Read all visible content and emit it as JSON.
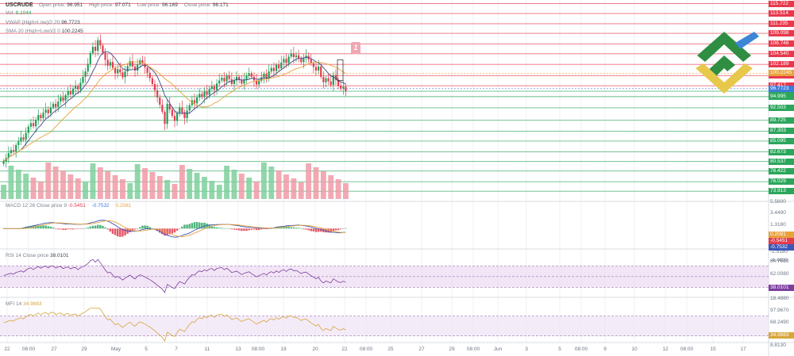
{
  "symbol": "USCRUDE",
  "ohlc": {
    "open_label": "Open price:",
    "open": "96.951",
    "high_label": "High price:",
    "high": "97.071",
    "low_label": "Low price:",
    "low": "96.169",
    "close_label": "Close price:",
    "close": "96.171"
  },
  "volume": {
    "label": "Vol:",
    "value": "9.1044"
  },
  "indicators": {
    "vwap": {
      "label": "VWAP (High+Low)/2 20",
      "value": "96.7723"
    },
    "sma": {
      "label": "SMA 20 (High+Low)/2 0",
      "value": "100.2245"
    },
    "macd": {
      "label": "MACD 12 26 Close price 9",
      "values": [
        "-0.5451",
        "-0.7532",
        "0.2081"
      ]
    },
    "rsi": {
      "label": "RSI 14 Close price",
      "value": "38.0101"
    },
    "mfi": {
      "label": "MFI 14",
      "value": "34.9883"
    }
  },
  "marker": {
    "label": "1"
  },
  "colors": {
    "red_level": "#e8394c",
    "green_level": "#2ba65c",
    "blue_level": "#3d7bdc",
    "price_candle_up": "#1f9e57",
    "price_candle_down": "#e23c4d",
    "vwap_line": "#3a4b8a",
    "sma_line": "#e9a23b",
    "rsi_line": "#7b3f9e",
    "mfi_line": "#d7a63b",
    "rsi_band": "#e9d3f0",
    "logo_green": "#2f8e42",
    "logo_yellow": "#e8c84a",
    "logo_blue": "#3c86d6"
  },
  "chart_data": {
    "type": "candlestick",
    "price_axis": {
      "ylim": [
        72,
        116
      ]
    },
    "levels": [
      {
        "label": "115.722",
        "value": 115.722,
        "kind": "resistance"
      },
      {
        "label": "113.514",
        "value": 113.514,
        "kind": "resistance"
      },
      {
        "label": "111.235",
        "value": 111.235,
        "kind": "resistance"
      },
      {
        "label": "109.098",
        "value": 109.098,
        "kind": "resistance"
      },
      {
        "label": "106.748",
        "value": 106.748,
        "kind": "resistance"
      },
      {
        "label": "104.540",
        "value": 104.54,
        "kind": "resistance"
      },
      {
        "label": "102.189",
        "value": 102.189,
        "kind": "resistance"
      },
      {
        "label": "99.696",
        "value": 99.696,
        "kind": "resistance"
      },
      {
        "label": "97.417",
        "value": 97.417,
        "kind": "resistance"
      },
      {
        "label": "96.195",
        "value": 96.195,
        "kind": "support"
      },
      {
        "label": "94.995",
        "value": 94.995,
        "kind": "support"
      },
      {
        "label": "92.503",
        "value": 92.503,
        "kind": "support"
      },
      {
        "label": "89.725",
        "value": 89.725,
        "kind": "support"
      },
      {
        "label": "87.303",
        "value": 87.303,
        "kind": "support"
      },
      {
        "label": "85.095",
        "value": 85.095,
        "kind": "support"
      },
      {
        "label": "82.673",
        "value": 82.673,
        "kind": "support"
      },
      {
        "label": "80.537",
        "value": 80.537,
        "kind": "support"
      },
      {
        "label": "78.422",
        "value": 78.422,
        "kind": "support"
      },
      {
        "label": "76.029",
        "value": 76.029,
        "kind": "support"
      },
      {
        "label": "73.913",
        "value": 73.913,
        "kind": "support"
      }
    ],
    "price_badges": [
      {
        "label": "100.2245",
        "value": 100.2245,
        "color": "#e9a23b"
      },
      {
        "label": "96.7723",
        "value": 96.7723,
        "color": "#3d7bdc"
      }
    ],
    "candles_close": [
      80.6,
      81.3,
      82.4,
      83.1,
      82.8,
      84.2,
      85.0,
      85.9,
      85.4,
      86.9,
      88.3,
      89.1,
      88.4,
      89.8,
      90.9,
      90.2,
      91.4,
      92.1,
      91.3,
      92.6,
      93.4,
      92.7,
      93.9,
      94.8,
      94.1,
      95.3,
      96.2,
      95.5,
      96.8,
      97.4,
      96.6,
      98.1,
      99.4,
      100.6,
      102.3,
      104.7,
      106.1,
      105.2,
      107.6,
      106.4,
      104.8,
      103.2,
      101.9,
      102.7,
      101.4,
      100.2,
      101.1,
      100.4,
      99.3,
      100.6,
      101.8,
      102.9,
      101.7,
      100.8,
      102.2,
      103.1,
      102.4,
      101.5,
      100.3,
      99.1,
      97.8,
      96.4,
      94.8,
      93.2,
      91.6,
      88.9,
      93.4,
      92.1,
      90.7,
      89.6,
      91.3,
      92.6,
      91.4,
      90.2,
      91.9,
      93.1,
      94.2,
      93.5,
      94.8,
      95.6,
      94.9,
      96.1,
      95.4,
      96.7,
      97.3,
      96.5,
      97.9,
      98.6,
      99.2,
      98.4,
      99.7,
      98.9,
      97.8,
      98.6,
      99.4,
      98.7,
      97.9,
      98.8,
      99.6,
      100.2,
      99.4,
      98.6,
      97.7,
      98.5,
      99.3,
      100.1,
      99.2,
      100.6,
      101.4,
      100.7,
      102.1,
      101.3,
      102.6,
      103.4,
      102.5,
      103.9,
      104.6,
      103.8,
      104.2,
      103.5,
      102.7,
      103.6,
      104.1,
      103.3,
      102.4,
      101.6,
      100.8,
      101.7,
      99.4,
      98.2,
      99.1,
      98.4,
      97.6,
      99.8,
      98.7,
      97.4,
      96.8,
      97.2,
      96.2
    ],
    "x_tick_labels": [
      "22",
      "08:00",
      "27",
      "29",
      "May",
      "5",
      "7",
      "11",
      "13",
      "08:00",
      "19",
      "20",
      "22",
      "08:00",
      "25",
      "27",
      "29",
      "08:00",
      "Jun",
      "3",
      "5",
      "08:00",
      "9",
      "10",
      "12",
      "08:00",
      "15",
      "17"
    ],
    "macd_axis": {
      "ylim": [
        -6.5,
        7.2
      ],
      "tick_labels": [
        "5.5800",
        "3.4490",
        "1.3180",
        "-0.7532",
        "-2.5180",
        "-4.4490"
      ]
    },
    "rsi_axis": {
      "ylim": [
        14,
        90
      ],
      "tick_labels": [
        "84.7630",
        "62.0080",
        "18.4880"
      ]
    },
    "mfi_axis": {
      "ylim": [
        0,
        115
      ],
      "tick_labels": [
        "97.9670",
        "68.2490",
        "8.8130"
      ]
    }
  }
}
